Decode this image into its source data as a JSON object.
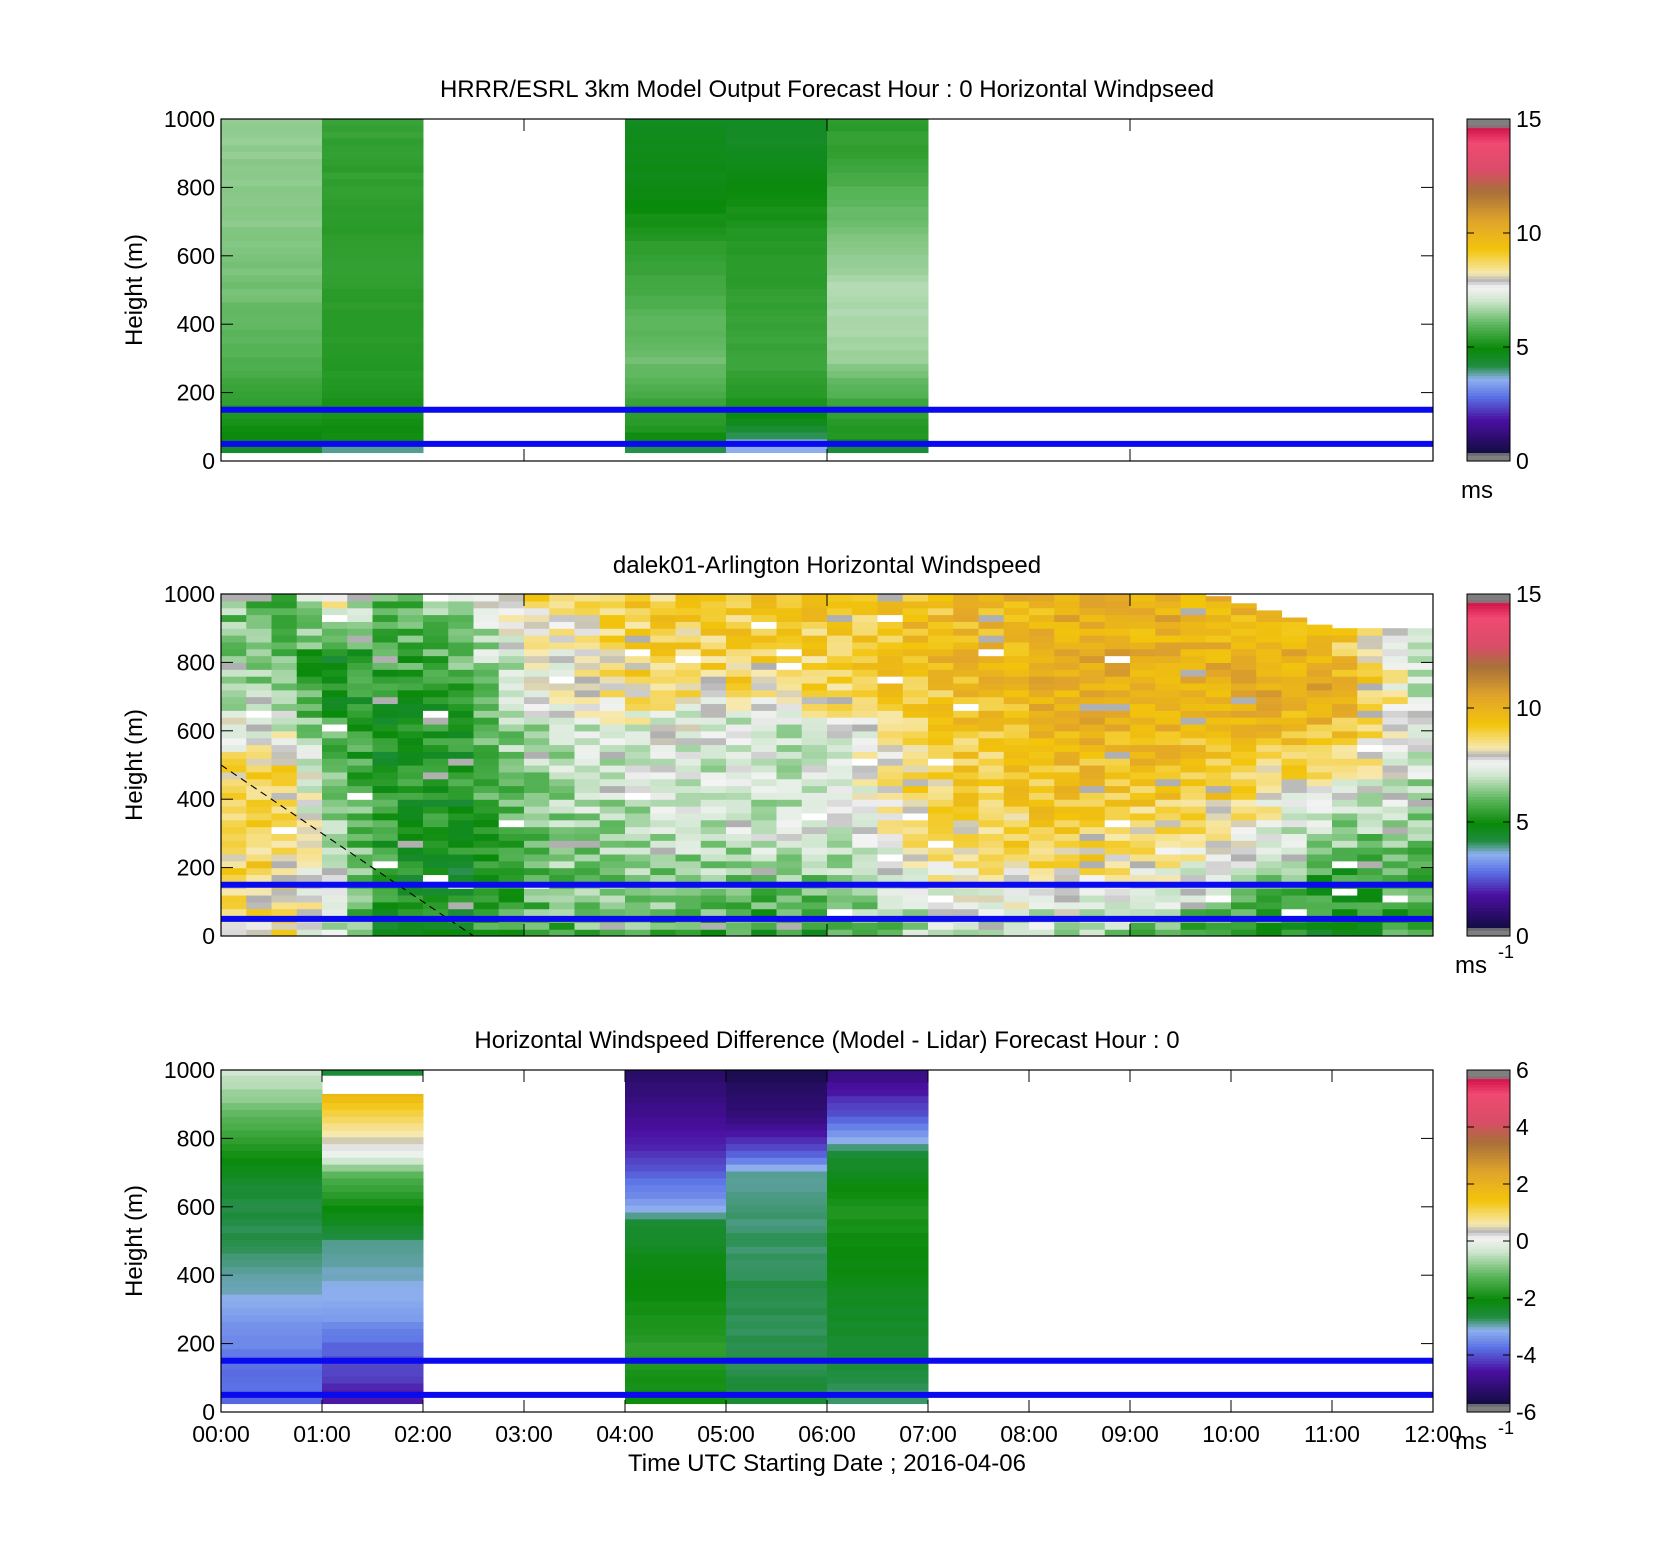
{
  "chart_data": [
    {
      "type": "heatmap",
      "title": "HRRR/ESRL 3km Model Output   Forecast Hour : 0 Horizontal Windpseed",
      "xlabel": "",
      "ylabel": "Height (m)",
      "xlim": [
        0,
        12
      ],
      "ylim": [
        0,
        1000
      ],
      "x_ticks": [
        "",
        "",
        "",
        "",
        ""
      ],
      "y_ticks": [
        0,
        200,
        400,
        600,
        800,
        1000
      ],
      "colorbar": {
        "min": 0,
        "max": 15,
        "ticks": [
          0,
          5,
          10,
          15
        ],
        "unit": "ms",
        "unit_sup": ""
      },
      "reference_lines_m": [
        50,
        150
      ],
      "columns": [
        {
          "t_start": 0,
          "t_end": 1,
          "profile": [
            [
              25,
              4.2
            ],
            [
              60,
              4.9
            ],
            [
              150,
              5.3
            ],
            [
              300,
              5.9
            ],
            [
              500,
              6.2
            ],
            [
              700,
              6.4
            ],
            [
              1000,
              6.5
            ]
          ]
        },
        {
          "t_start": 1,
          "t_end": 2,
          "profile": [
            [
              25,
              3.5
            ],
            [
              60,
              5.0
            ],
            [
              150,
              5.2
            ],
            [
              300,
              5.3
            ],
            [
              500,
              5.4
            ],
            [
              700,
              5.4
            ],
            [
              1000,
              5.5
            ]
          ]
        },
        {
          "t_start": 4,
          "t_end": 5,
          "profile": [
            [
              25,
              3.8
            ],
            [
              60,
              5.0
            ],
            [
              150,
              5.5
            ],
            [
              300,
              6.2
            ],
            [
              400,
              6.0
            ],
            [
              600,
              5.5
            ],
            [
              800,
              4.8
            ],
            [
              1000,
              4.6
            ]
          ]
        },
        {
          "t_start": 5,
          "t_end": 6,
          "profile": [
            [
              25,
              3.5
            ],
            [
              60,
              3.8
            ],
            [
              100,
              4.5
            ],
            [
              150,
              5.2
            ],
            [
              300,
              5.6
            ],
            [
              500,
              5.4
            ],
            [
              700,
              5.2
            ],
            [
              900,
              4.6
            ],
            [
              1000,
              4.5
            ]
          ]
        },
        {
          "t_start": 6,
          "t_end": 7,
          "profile": [
            [
              25,
              3.8
            ],
            [
              60,
              5.2
            ],
            [
              150,
              5.5
            ],
            [
              300,
              6.6
            ],
            [
              500,
              6.8
            ],
            [
              700,
              6.2
            ],
            [
              900,
              5.5
            ],
            [
              1000,
              5.4
            ]
          ]
        }
      ]
    },
    {
      "type": "heatmap",
      "title": "dalek01-Arlington  Horizontal Windspeed",
      "xlabel": "",
      "ylabel": "Height (m)",
      "xlim": [
        0,
        12
      ],
      "ylim": [
        0,
        1000
      ],
      "x_ticks": [
        "",
        "",
        "",
        "",
        ""
      ],
      "y_ticks": [
        0,
        200,
        400,
        600,
        800,
        1000
      ],
      "colorbar": {
        "min": 0,
        "max": 15,
        "ticks": [
          0,
          5,
          10,
          15
        ],
        "unit": "ms",
        "unit_sup": "-1"
      },
      "reference_lines_m": [
        50,
        150
      ],
      "dashed_line": {
        "from": [
          0,
          500
        ],
        "to": [
          2.5,
          0
        ]
      },
      "time_step_h": 0.25,
      "columns_profile_keyframes": [
        {
          "t": 0.0,
          "profile": [
            [
              0,
              8
            ],
            [
              200,
              8.5
            ],
            [
              450,
              8.8
            ],
            [
              650,
              7.2
            ],
            [
              1000,
              6.2
            ]
          ]
        },
        {
          "t": 0.6,
          "profile": [
            [
              0,
              8.5
            ],
            [
              200,
              9
            ],
            [
              500,
              8.8
            ],
            [
              700,
              6.5
            ],
            [
              1000,
              5.8
            ]
          ]
        },
        {
          "t": 1.1,
          "profile": [
            [
              0,
              7
            ],
            [
              200,
              7.2
            ],
            [
              500,
              6.2
            ],
            [
              800,
              4.8
            ],
            [
              1000,
              8.5
            ]
          ]
        },
        {
          "t": 1.6,
          "profile": [
            [
              0,
              5
            ],
            [
              300,
              5.5
            ],
            [
              600,
              5
            ],
            [
              1000,
              6
            ]
          ]
        },
        {
          "t": 2.3,
          "profile": [
            [
              0,
              4.8
            ],
            [
              300,
              4.8
            ],
            [
              600,
              5.2
            ],
            [
              1000,
              6.5
            ]
          ]
        },
        {
          "t": 3.0,
          "profile": [
            [
              0,
              5.8
            ],
            [
              300,
              6.2
            ],
            [
              600,
              6.8
            ],
            [
              800,
              7.5
            ],
            [
              1000,
              8.6
            ]
          ]
        },
        {
          "t": 4.0,
          "profile": [
            [
              0,
              6
            ],
            [
              300,
              6.8
            ],
            [
              600,
              7.4
            ],
            [
              700,
              8.6
            ],
            [
              1000,
              9
            ]
          ]
        },
        {
          "t": 5.0,
          "profile": [
            [
              0,
              5.5
            ],
            [
              300,
              7
            ],
            [
              650,
              7.2
            ],
            [
              750,
              8.8
            ],
            [
              1000,
              9.2
            ]
          ]
        },
        {
          "t": 6.0,
          "profile": [
            [
              0,
              5.2
            ],
            [
              300,
              7.2
            ],
            [
              600,
              7
            ],
            [
              700,
              8.8
            ],
            [
              1000,
              9.2
            ]
          ]
        },
        {
          "t": 7.0,
          "profile": [
            [
              0,
              6.8
            ],
            [
              300,
              8.6
            ],
            [
              600,
              9
            ],
            [
              800,
              9.6
            ],
            [
              1000,
              9.5
            ]
          ]
        },
        {
          "t": 8.5,
          "profile": [
            [
              0,
              6.5
            ],
            [
              200,
              8.8
            ],
            [
              500,
              9.6
            ],
            [
              700,
              10.2
            ],
            [
              1000,
              10
            ]
          ]
        },
        {
          "t": 9.8,
          "profile": [
            [
              0,
              5.6
            ],
            [
              200,
              7.5
            ],
            [
              400,
              9
            ],
            [
              700,
              10
            ],
            [
              1000,
              10
            ]
          ]
        },
        {
          "t": 11.0,
          "profile": [
            [
              0,
              5
            ],
            [
              200,
              5.5
            ],
            [
              400,
              7.5
            ],
            [
              700,
              10.5
            ],
            [
              900,
              9.5
            ]
          ]
        },
        {
          "t": 12.0,
          "profile": [
            [
              0,
              5.8
            ],
            [
              300,
              6.3
            ],
            [
              600,
              7.2
            ],
            [
              900,
              6
            ]
          ]
        }
      ]
    },
    {
      "type": "heatmap",
      "title": "Horizontal Windspeed Difference (Model - Lidar) Forecast Hour : 0",
      "xlabel": "Time UTC  Starting Date ; 2016-04-06",
      "ylabel": "Height (m)",
      "xlim": [
        0,
        12
      ],
      "ylim": [
        0,
        1000
      ],
      "x_ticks": [
        "00:00",
        "01:00",
        "02:00",
        "03:00",
        "04:00",
        "05:00",
        "06:00",
        "07:00",
        "08:00",
        "09:00",
        "10:00",
        "11:00",
        "12:00"
      ],
      "y_ticks": [
        0,
        200,
        400,
        600,
        800,
        1000
      ],
      "colorbar": {
        "min": -6,
        "max": 6,
        "ticks": [
          -6,
          -4,
          -2,
          0,
          2,
          4,
          6
        ],
        "unit": "ms",
        "unit_sup": "-1"
      },
      "reference_lines_m": [
        50,
        150
      ],
      "columns": [
        {
          "t_start": 0,
          "t_end": 1,
          "profile": [
            [
              25,
              -3.8
            ],
            [
              150,
              -3.7
            ],
            [
              250,
              -3.4
            ],
            [
              350,
              -3.0
            ],
            [
              500,
              -2.7
            ],
            [
              650,
              -2.6
            ],
            [
              800,
              -1.6
            ],
            [
              950,
              -0.6
            ],
            [
              1000,
              -0.3
            ]
          ]
        },
        {
          "t_start": 1,
          "t_end": 2,
          "profile": [
            [
              25,
              -4.6
            ],
            [
              100,
              -4.2
            ],
            [
              200,
              -3.8
            ],
            [
              300,
              -3.2
            ],
            [
              500,
              -2.8
            ],
            [
              600,
              -2.0
            ],
            [
              700,
              -1.2
            ],
            [
              750,
              0.0
            ],
            [
              850,
              0.9
            ],
            [
              930,
              1.8
            ]
          ]
        },
        {
          "t_start": 1,
          "t_end": 2,
          "profile": [
            [
              985,
              -2.6
            ],
            [
              1000,
              -2.6
            ]
          ]
        },
        {
          "t_start": 4,
          "t_end": 5,
          "profile": [
            [
              25,
              -2.0
            ],
            [
              200,
              -1.7
            ],
            [
              400,
              -2.1
            ],
            [
              550,
              -2.5
            ],
            [
              600,
              -3.2
            ],
            [
              700,
              -3.9
            ],
            [
              800,
              -4.5
            ],
            [
              1000,
              -5.3
            ]
          ]
        },
        {
          "t_start": 5,
          "t_end": 6,
          "profile": [
            [
              25,
              -2.6
            ],
            [
              200,
              -2.7
            ],
            [
              400,
              -2.7
            ],
            [
              600,
              -2.8
            ],
            [
              700,
              -2.9
            ],
            [
              750,
              -3.8
            ],
            [
              850,
              -4.9
            ],
            [
              1000,
              -5.6
            ]
          ]
        },
        {
          "t_start": 6,
          "t_end": 7,
          "profile": [
            [
              25,
              -2.8
            ],
            [
              200,
              -2.5
            ],
            [
              400,
              -2.2
            ],
            [
              600,
              -1.8
            ],
            [
              750,
              -2.5
            ],
            [
              850,
              -3.8
            ],
            [
              950,
              -4.6
            ],
            [
              1000,
              -5.0
            ]
          ]
        }
      ]
    }
  ]
}
